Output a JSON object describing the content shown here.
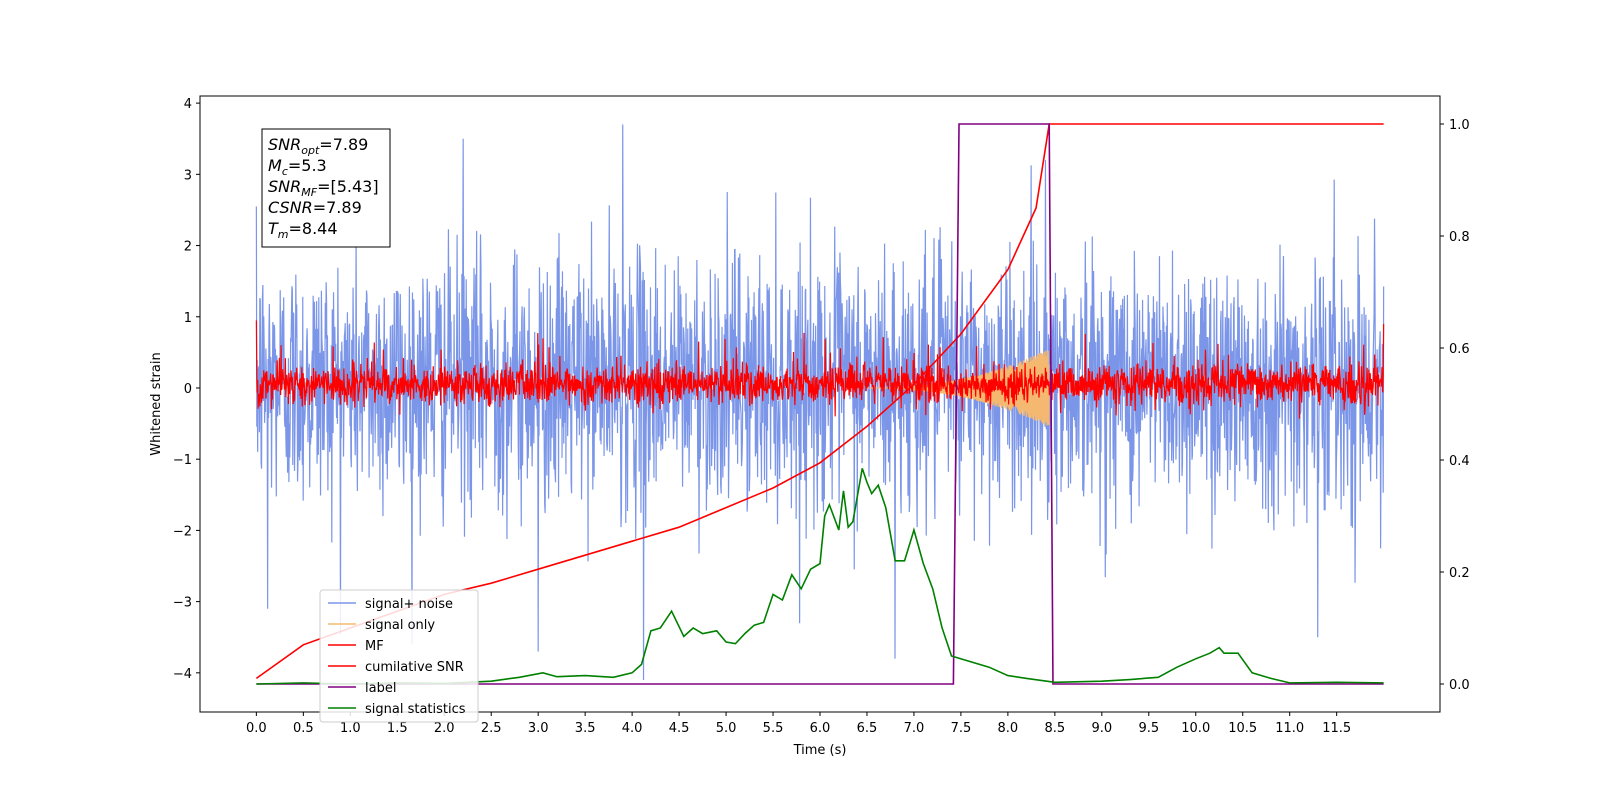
{
  "chart_data": {
    "type": "line",
    "xlabel": "Time (s)",
    "ylabel_left": "Whitened strain",
    "ylabel_right": "",
    "xlim": [
      -0.6,
      12.6
    ],
    "ylim_left": [
      -4.55,
      4.1
    ],
    "ylim_right": [
      -0.05,
      1.05
    ],
    "x_ticks": [
      0.0,
      0.5,
      1.0,
      1.5,
      2.0,
      2.5,
      3.0,
      3.5,
      4.0,
      4.5,
      5.0,
      5.5,
      6.0,
      6.5,
      7.0,
      7.5,
      8.0,
      8.5,
      9.0,
      9.5,
      10.0,
      10.5,
      11.0,
      11.5
    ],
    "x_tick_labels": [
      "0.0",
      "0.5",
      "1.0",
      "1.5",
      "2.0",
      "2.5",
      "3.0",
      "3.5",
      "4.0",
      "4.5",
      "5.0",
      "5.5",
      "6.0",
      "6.5",
      "7.0",
      "7.5",
      "8.0",
      "8.5",
      "9.0",
      "9.5",
      "10.0",
      "10.5",
      "11.0",
      "11.5"
    ],
    "y_ticks_left": [
      4,
      3,
      2,
      1,
      0,
      -1,
      -2,
      -3,
      -4
    ],
    "y_tick_labels_left": [
      "4",
      "3",
      "2",
      "1",
      "0",
      "−1",
      "−2",
      "−3",
      "−4"
    ],
    "y_ticks_right": [
      1.0,
      0.8,
      0.6,
      0.4,
      0.2,
      0.0
    ],
    "y_tick_labels_right": [
      "1.0",
      "0.8",
      "0.6",
      "0.4",
      "0.2",
      "0.0"
    ],
    "grid": false,
    "legend_position": "lower-left",
    "annotation": {
      "lines": [
        {
          "sym": "SNR",
          "sub": "opt",
          "value": "=7.89"
        },
        {
          "sym": "M",
          "sub": "c",
          "value": "=5.3"
        },
        {
          "sym": "SNR",
          "sub": "MF",
          "value": "=[5.43]"
        },
        {
          "sym": "CSNR",
          "sub": "",
          "value": "=7.89"
        },
        {
          "sym": "T",
          "sub": "m",
          "value": "=8.44"
        }
      ]
    },
    "series": [
      {
        "name": "signal+ noise",
        "axis": "left",
        "color": "#7b96e8",
        "style": "noise",
        "x_range": [
          0.0,
          12.0
        ],
        "typical_amplitude": [
          -2.0,
          2.2
        ],
        "spike_peaks": [
          {
            "x": 0.12,
            "y": -3.1
          },
          {
            "x": 2.2,
            "y": 3.5
          },
          {
            "x": 3.0,
            "y": -3.7
          },
          {
            "x": 3.9,
            "y": 3.7
          },
          {
            "x": 4.12,
            "y": -4.1
          },
          {
            "x": 6.8,
            "y": -3.8
          },
          {
            "x": 8.4,
            "y": 3.2
          },
          {
            "x": 11.3,
            "y": -3.5
          }
        ]
      },
      {
        "name": "signal only",
        "axis": "left",
        "color": "#f5b870",
        "style": "chirp",
        "x_range": [
          6.5,
          8.44
        ],
        "peak_amplitude": 0.55
      },
      {
        "name": "MF",
        "axis": "left",
        "color": "#ff0000",
        "style": "noise",
        "x_range": [
          0.0,
          12.0
        ],
        "typical_amplitude": [
          -0.3,
          0.5
        ]
      },
      {
        "name": "cumilative SNR",
        "axis": "right",
        "color": "#ff0000",
        "points": [
          [
            0.0,
            0.01
          ],
          [
            0.5,
            0.07
          ],
          [
            1.0,
            0.1
          ],
          [
            1.5,
            0.13
          ],
          [
            2.0,
            0.16
          ],
          [
            2.5,
            0.18
          ],
          [
            3.0,
            0.205
          ],
          [
            3.5,
            0.23
          ],
          [
            4.0,
            0.255
          ],
          [
            4.5,
            0.28
          ],
          [
            5.0,
            0.315
          ],
          [
            5.5,
            0.35
          ],
          [
            6.0,
            0.395
          ],
          [
            6.5,
            0.46
          ],
          [
            7.0,
            0.535
          ],
          [
            7.5,
            0.625
          ],
          [
            8.0,
            0.74
          ],
          [
            8.3,
            0.85
          ],
          [
            8.44,
            1.0
          ],
          [
            12.0,
            1.0
          ]
        ]
      },
      {
        "name": "label",
        "axis": "right",
        "color": "#800080",
        "points": [
          [
            0.0,
            0.0
          ],
          [
            7.42,
            0.0
          ],
          [
            7.48,
            1.0
          ],
          [
            8.44,
            1.0
          ],
          [
            8.48,
            0.0
          ],
          [
            12.0,
            0.0
          ]
        ]
      },
      {
        "name": "signal statistics",
        "axis": "right",
        "color": "#008000",
        "points": [
          [
            0.0,
            0.0
          ],
          [
            0.5,
            0.002
          ],
          [
            1.0,
            0.0
          ],
          [
            1.5,
            0.002
          ],
          [
            2.0,
            0.001
          ],
          [
            2.5,
            0.005
          ],
          [
            2.8,
            0.012
          ],
          [
            3.05,
            0.02
          ],
          [
            3.2,
            0.013
          ],
          [
            3.5,
            0.015
          ],
          [
            3.8,
            0.012
          ],
          [
            4.0,
            0.02
          ],
          [
            4.1,
            0.035
          ],
          [
            4.2,
            0.095
          ],
          [
            4.3,
            0.1
          ],
          [
            4.42,
            0.13
          ],
          [
            4.55,
            0.085
          ],
          [
            4.65,
            0.1
          ],
          [
            4.75,
            0.09
          ],
          [
            4.9,
            0.095
          ],
          [
            5.0,
            0.075
          ],
          [
            5.1,
            0.072
          ],
          [
            5.2,
            0.09
          ],
          [
            5.3,
            0.105
          ],
          [
            5.4,
            0.11
          ],
          [
            5.5,
            0.16
          ],
          [
            5.6,
            0.15
          ],
          [
            5.7,
            0.195
          ],
          [
            5.8,
            0.17
          ],
          [
            5.9,
            0.205
          ],
          [
            6.0,
            0.215
          ],
          [
            6.05,
            0.3
          ],
          [
            6.1,
            0.32
          ],
          [
            6.2,
            0.275
          ],
          [
            6.25,
            0.345
          ],
          [
            6.3,
            0.28
          ],
          [
            6.35,
            0.29
          ],
          [
            6.45,
            0.385
          ],
          [
            6.5,
            0.36
          ],
          [
            6.55,
            0.34
          ],
          [
            6.62,
            0.355
          ],
          [
            6.7,
            0.315
          ],
          [
            6.8,
            0.22
          ],
          [
            6.9,
            0.22
          ],
          [
            7.0,
            0.275
          ],
          [
            7.1,
            0.215
          ],
          [
            7.2,
            0.17
          ],
          [
            7.3,
            0.1
          ],
          [
            7.4,
            0.05
          ],
          [
            7.6,
            0.04
          ],
          [
            7.8,
            0.03
          ],
          [
            8.0,
            0.015
          ],
          [
            8.2,
            0.01
          ],
          [
            8.5,
            0.003
          ],
          [
            9.0,
            0.005
          ],
          [
            9.3,
            0.008
          ],
          [
            9.6,
            0.012
          ],
          [
            9.8,
            0.03
          ],
          [
            10.0,
            0.045
          ],
          [
            10.15,
            0.055
          ],
          [
            10.25,
            0.065
          ],
          [
            10.3,
            0.055
          ],
          [
            10.45,
            0.055
          ],
          [
            10.6,
            0.02
          ],
          [
            10.8,
            0.01
          ],
          [
            11.0,
            0.002
          ],
          [
            11.5,
            0.003
          ],
          [
            12.0,
            0.002
          ]
        ]
      }
    ]
  }
}
